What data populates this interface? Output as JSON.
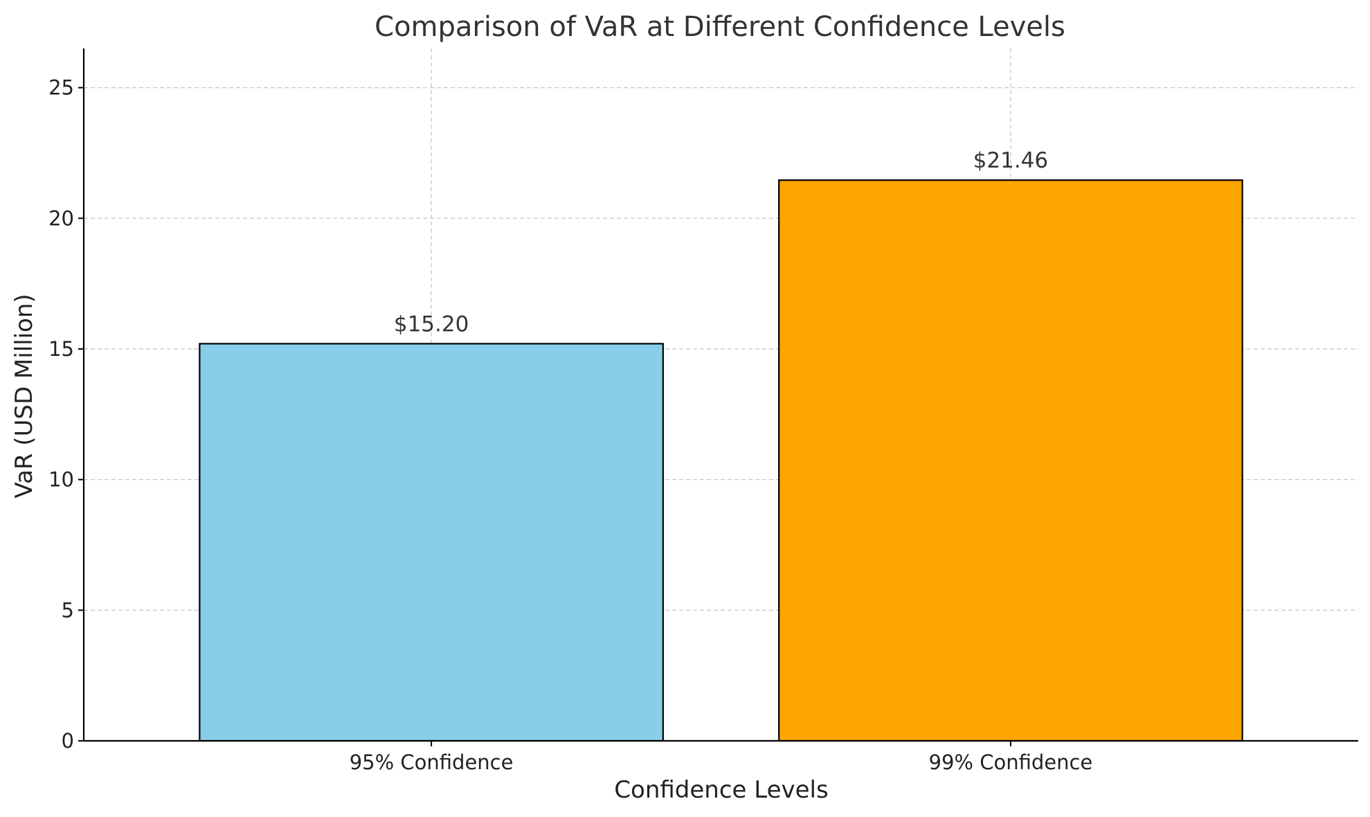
{
  "chart_data": {
    "type": "bar",
    "title": "Comparison of VaR at Different Confidence Levels",
    "xlabel": "Confidence Levels",
    "ylabel": "VaR (USD Million)",
    "categories": [
      "95% Confidence",
      "99% Confidence"
    ],
    "values": [
      15.2,
      21.46
    ],
    "value_labels": [
      "$15.20",
      "$21.46"
    ],
    "colors": [
      "#87CEEB",
      "#FFA500"
    ],
    "ylim": [
      0,
      26.5
    ],
    "yticks": [
      0,
      5,
      10,
      15,
      20,
      25
    ],
    "ytick_labels": [
      "0",
      "5",
      "10",
      "15",
      "20",
      "25"
    ],
    "grid": true
  }
}
